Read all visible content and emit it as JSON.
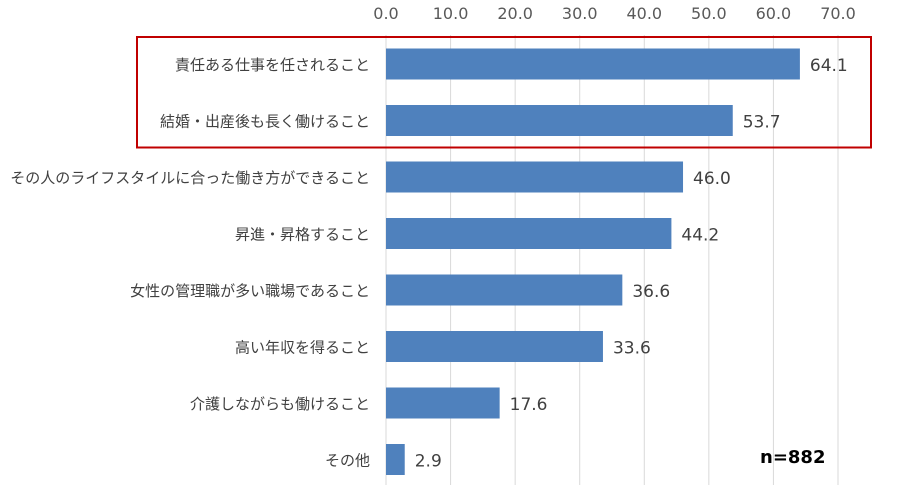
{
  "chart_data": {
    "type": "bar",
    "orientation": "horizontal",
    "categories": [
      "責任ある仕事を任されること",
      "結婚・出産後も長く働けること",
      "その人のライフスタイルに合った働き方ができること",
      "昇進・昇格すること",
      "女性の管理職が多い職場であること",
      "高い年収を得ること",
      "介護しながらも働けること",
      "その他"
    ],
    "values": [
      64.1,
      53.7,
      46.0,
      44.2,
      36.6,
      33.6,
      17.6,
      2.9
    ],
    "value_labels": [
      "64.1",
      "53.7",
      "46.0",
      "44.2",
      "36.6",
      "33.6",
      "17.6",
      "2.9"
    ],
    "xlim": [
      0,
      70
    ],
    "x_ticks": [
      "0.0",
      "10.0",
      "20.0",
      "30.0",
      "40.0",
      "50.0",
      "60.0",
      "70.0"
    ],
    "x_axis_position": "top",
    "grid": true,
    "title": "",
    "xlabel": "",
    "ylabel": "",
    "note": "n=882",
    "highlighted_categories": [
      0,
      1
    ],
    "colors": {
      "bar": "#4f81bd",
      "highlight_box": "#c00000",
      "grid": "#d9d9d9"
    }
  }
}
